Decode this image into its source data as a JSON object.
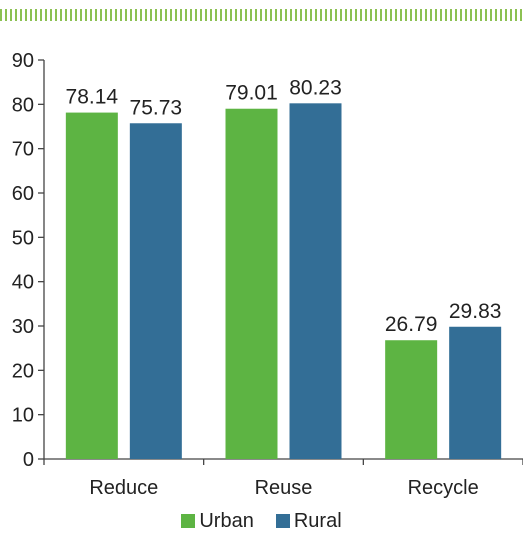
{
  "colors": {
    "stripe": "#8cc152",
    "axis": "#444444",
    "text": "#222222"
  },
  "chart_data": {
    "type": "bar",
    "title": "",
    "xlabel": "",
    "ylabel": "",
    "categories": [
      "Reduce",
      "Reuse",
      "Recycle"
    ],
    "series": [
      {
        "name": "Urban",
        "color": "#5db443",
        "values": [
          78.14,
          79.01,
          26.79
        ]
      },
      {
        "name": "Rural",
        "color": "#336e96",
        "values": [
          75.73,
          80.23,
          29.83
        ]
      }
    ],
    "data_labels": [
      [
        "78.14",
        "79.01",
        "26.79"
      ],
      [
        "75.73",
        "80.23",
        "29.83"
      ]
    ],
    "ylim": [
      0,
      90
    ],
    "yticks": [
      0,
      10,
      20,
      30,
      40,
      50,
      60,
      70,
      80,
      90
    ],
    "grid": false,
    "legend_position": "bottom"
  }
}
